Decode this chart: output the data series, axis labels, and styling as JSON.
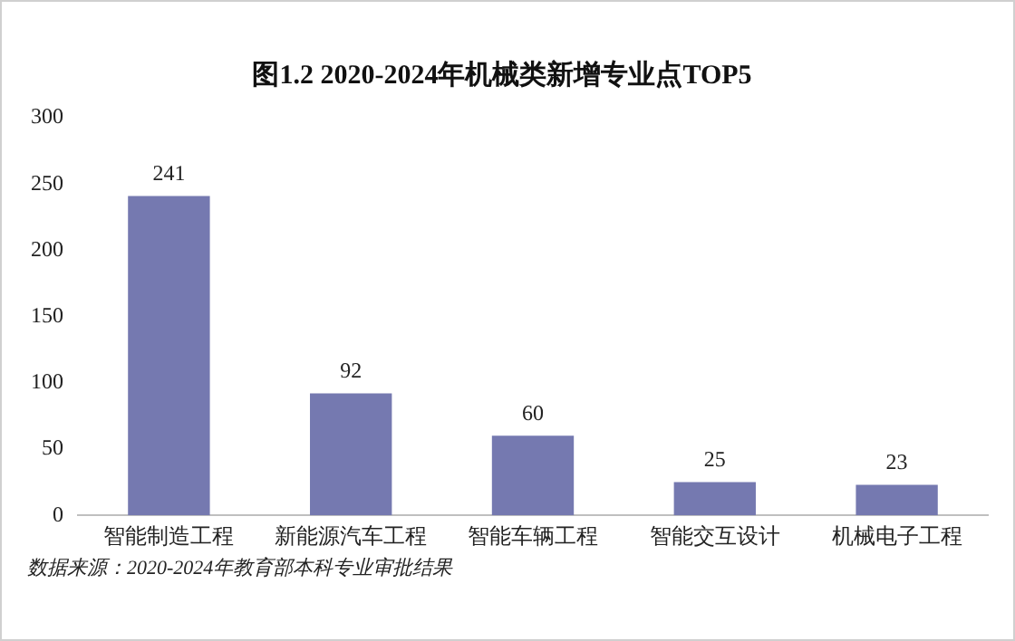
{
  "chart_data": {
    "type": "bar",
    "title": "图1.2 2020-2024年机械类新增专业点TOP5",
    "categories": [
      "智能制造工程",
      "新能源汽车工程",
      "智能车辆工程",
      "智能交互设计",
      "机械电子工程"
    ],
    "values": [
      241,
      92,
      60,
      25,
      23
    ],
    "color": "#7579b0",
    "ylim": [
      0,
      300
    ],
    "yticks": [
      0,
      50,
      100,
      150,
      200,
      250,
      300
    ],
    "grid": false,
    "data_labels": true,
    "annotations": [
      "数据来源：2020-2024年教育部本科专业审批结果"
    ]
  }
}
